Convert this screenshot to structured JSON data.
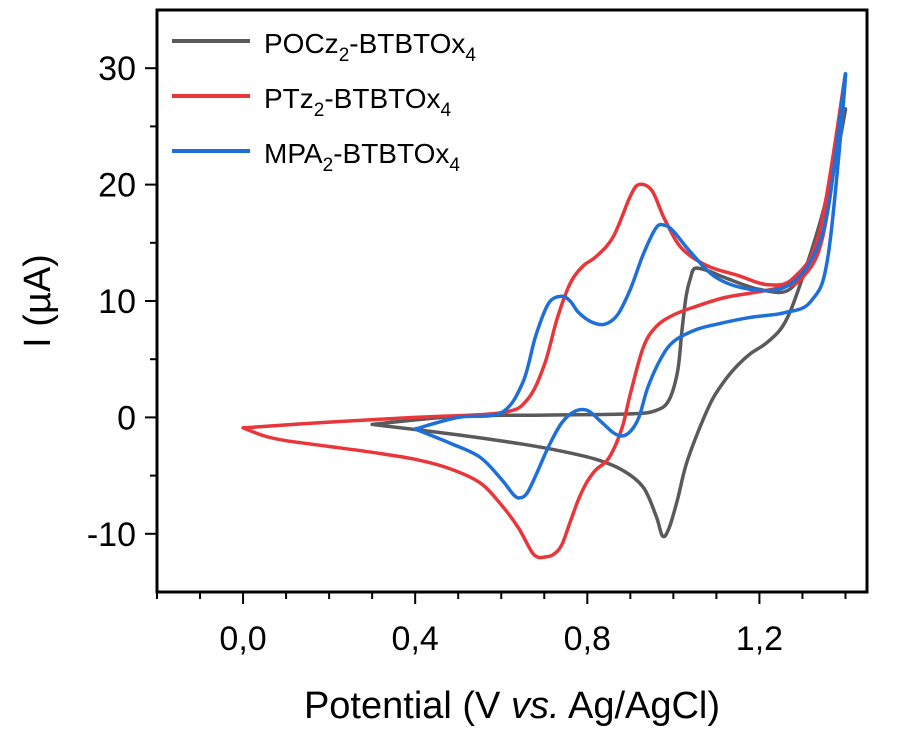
{
  "chart_data": {
    "type": "line",
    "title": "",
    "xlabel_parts": [
      "Potential (V ",
      "vs.",
      " Ag/AgCl)"
    ],
    "ylabel": "I (µA)",
    "xlim": [
      -0.2,
      1.45
    ],
    "ylim": [
      -15,
      35
    ],
    "xticks": [
      0.0,
      0.4,
      0.8,
      1.2
    ],
    "xtick_labels": [
      "0,0",
      "0,4",
      "0,8",
      "1,2"
    ],
    "yticks": [
      -10,
      0,
      10,
      20,
      30
    ],
    "ytick_labels": [
      "-10",
      "0",
      "10",
      "20",
      "30"
    ],
    "grid": false,
    "legend_position": "top-left",
    "series": [
      {
        "name": "POCz2-BTBTOx4",
        "label_parts": [
          "POCz",
          "2",
          "-BTBTOx",
          "4"
        ],
        "color": "#5a5a5a",
        "x": [
          0.3,
          0.5,
          0.7,
          0.9,
          0.96,
          0.99,
          1.01,
          1.02,
          1.03,
          1.04,
          1.05,
          1.08,
          1.12,
          1.2,
          1.27,
          1.32,
          1.36,
          1.4,
          1.35,
          1.3,
          1.26,
          1.22,
          1.18,
          1.15,
          1.12,
          1.09,
          1.06,
          1.03,
          1.01,
          0.99,
          0.975,
          0.96,
          0.93,
          0.88,
          0.82,
          0.74,
          0.65,
          0.5,
          0.3
        ],
        "y": [
          -0.6,
          0.1,
          0.2,
          0.3,
          0.6,
          1.5,
          4.0,
          7.5,
          10.5,
          12.0,
          12.8,
          12.6,
          12.0,
          11.0,
          11.0,
          14.0,
          19.0,
          26.5,
          18.0,
          12.0,
          8.2,
          6.5,
          5.5,
          4.5,
          3.2,
          1.5,
          -1.0,
          -4.0,
          -7.0,
          -9.5,
          -10.2,
          -8.5,
          -6.0,
          -4.5,
          -3.6,
          -2.9,
          -2.3,
          -1.5,
          -0.6
        ]
      },
      {
        "name": "PTz2-BTBTOx4",
        "label_parts": [
          "PTz",
          "2",
          "-BTBTOx",
          "4"
        ],
        "color": "#e8363a",
        "x": [
          0.0,
          0.2,
          0.4,
          0.6,
          0.66,
          0.7,
          0.73,
          0.76,
          0.79,
          0.82,
          0.86,
          0.9,
          0.92,
          0.95,
          0.98,
          1.02,
          1.08,
          1.15,
          1.22,
          1.28,
          1.34,
          1.4,
          1.35,
          1.3,
          1.25,
          1.2,
          1.12,
          1.05,
          1.0,
          0.96,
          0.93,
          0.9,
          0.88,
          0.85,
          0.82,
          0.8,
          0.78,
          0.76,
          0.74,
          0.72,
          0.7,
          0.685,
          0.67,
          0.64,
          0.6,
          0.55,
          0.48,
          0.4,
          0.3,
          0.2,
          0.1,
          0.05,
          0.0
        ],
        "y": [
          -0.9,
          -0.4,
          0.0,
          0.4,
          1.5,
          4.5,
          8.5,
          11.5,
          13.0,
          13.8,
          15.5,
          19.0,
          20.0,
          19.5,
          17.0,
          14.5,
          13.0,
          12.2,
          11.4,
          12.0,
          16.0,
          29.5,
          16.0,
          12.0,
          11.2,
          10.8,
          10.3,
          9.5,
          8.8,
          7.8,
          6.0,
          2.0,
          -1.0,
          -3.5,
          -4.5,
          -5.5,
          -7.0,
          -9.0,
          -11.0,
          -11.8,
          -12.0,
          -12.0,
          -11.5,
          -9.5,
          -7.5,
          -5.6,
          -4.4,
          -3.6,
          -3.0,
          -2.5,
          -2.0,
          -1.6,
          -0.9
        ]
      },
      {
        "name": "MPA2-BTBTOx4",
        "label_parts": [
          "MPA",
          "2",
          "-BTBTOx",
          "4"
        ],
        "color": "#1f6fd8",
        "x": [
          0.4,
          0.5,
          0.6,
          0.65,
          0.68,
          0.71,
          0.74,
          0.76,
          0.78,
          0.81,
          0.84,
          0.87,
          0.9,
          0.93,
          0.96,
          0.98,
          1.0,
          1.04,
          1.1,
          1.18,
          1.26,
          1.32,
          1.36,
          1.4,
          1.36,
          1.32,
          1.26,
          1.18,
          1.1,
          1.05,
          1.0,
          0.97,
          0.94,
          0.92,
          0.9,
          0.88,
          0.86,
          0.83,
          0.8,
          0.77,
          0.74,
          0.71,
          0.68,
          0.66,
          0.645,
          0.63,
          0.6,
          0.55,
          0.48,
          0.4
        ],
        "y": [
          -1.0,
          0.0,
          0.4,
          3.0,
          7.0,
          9.8,
          10.4,
          10.0,
          9.0,
          8.2,
          8.0,
          8.8,
          11.0,
          14.0,
          16.3,
          16.5,
          16.0,
          14.2,
          12.0,
          11.0,
          11.2,
          13.5,
          18.0,
          29.5,
          14.0,
          10.0,
          9.0,
          8.6,
          8.0,
          7.5,
          6.5,
          5.0,
          2.5,
          0.0,
          -1.2,
          -1.6,
          -1.3,
          -0.3,
          0.6,
          0.5,
          -0.5,
          -2.5,
          -5.0,
          -6.5,
          -6.9,
          -6.7,
          -5.3,
          -3.4,
          -2.2,
          -1.0
        ]
      }
    ]
  }
}
